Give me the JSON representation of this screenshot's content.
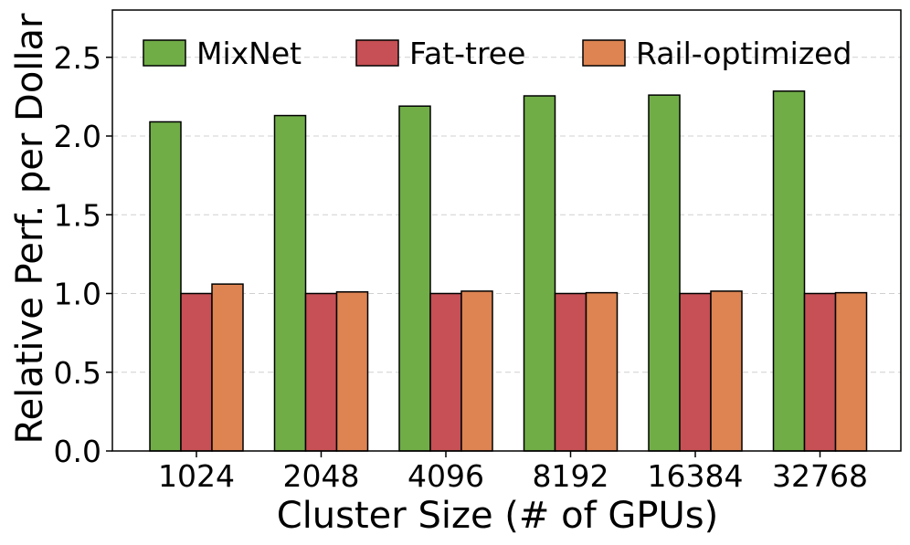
{
  "chart_data": {
    "type": "bar",
    "title": "",
    "xlabel": "Cluster Size (# of GPUs)",
    "ylabel": "Relative Perf. per Dollar",
    "categories": [
      "1024",
      "2048",
      "4096",
      "8192",
      "16384",
      "32768"
    ],
    "series": [
      {
        "name": "MixNet",
        "color": "#70ad47",
        "values": [
          2.09,
          2.13,
          2.19,
          2.255,
          2.26,
          2.285
        ]
      },
      {
        "name": "Fat-tree",
        "color": "#c65055",
        "values": [
          1.0,
          1.0,
          1.0,
          1.0,
          1.0,
          1.0
        ]
      },
      {
        "name": "Rail-optimized",
        "color": "#dd8452",
        "values": [
          1.06,
          1.01,
          1.015,
          1.005,
          1.015,
          1.005
        ]
      }
    ],
    "ylim": [
      0,
      2.8
    ],
    "yticks": [
      0.0,
      0.5,
      1.0,
      1.5,
      2.0,
      2.5
    ],
    "ytick_labels": [
      "0.0",
      "0.5",
      "1.0",
      "1.5",
      "2.0",
      "2.5"
    ],
    "grid": "y-dashed",
    "legend": "top, horizontal"
  }
}
